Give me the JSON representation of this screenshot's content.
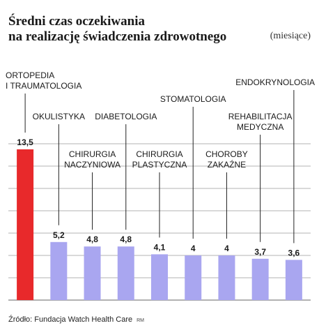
{
  "title_line1": "Średni czas oczekiwania",
  "title_line2": "na realizację świadczenia zdrowotnego",
  "unit": "(miesiące)",
  "source": "Źródło: Fundacja Watch Health Care",
  "author_tag": "RM",
  "colors": {
    "highlight": "#e8292b",
    "bar": "#a9a6f0",
    "grid": "#9a9a9a",
    "text": "#1a1a1a"
  },
  "chart_data": {
    "type": "bar",
    "categories": [
      [
        "ORTOPEDIA",
        "I TRAUMATOLOGIA"
      ],
      [
        "OKULISTYKA"
      ],
      [
        "CHIRURGIA",
        "NACZYNIOWA"
      ],
      [
        "DIABETOLOGIA"
      ],
      [
        "CHIRURGIA",
        "PLASTYCZNA"
      ],
      [
        "STOMATOLOGIA"
      ],
      [
        "CHOROBY",
        "ZAKAŹNE"
      ],
      [
        "REHABILITACJA",
        "MEDYCZNA"
      ],
      [
        "ENDOKRYNOLOGIA"
      ]
    ],
    "values": [
      13.5,
      5.2,
      4.8,
      4.8,
      4.1,
      4,
      4,
      3.7,
      3.6
    ],
    "value_labels": [
      "13,5",
      "5,2",
      "4,8",
      "4,8",
      "4,1",
      "4",
      "4",
      "3,7",
      "3,6"
    ],
    "highlight_index": 0,
    "ylim": [
      0,
      15
    ],
    "grid": true,
    "xlabel": "",
    "ylabel": ""
  }
}
